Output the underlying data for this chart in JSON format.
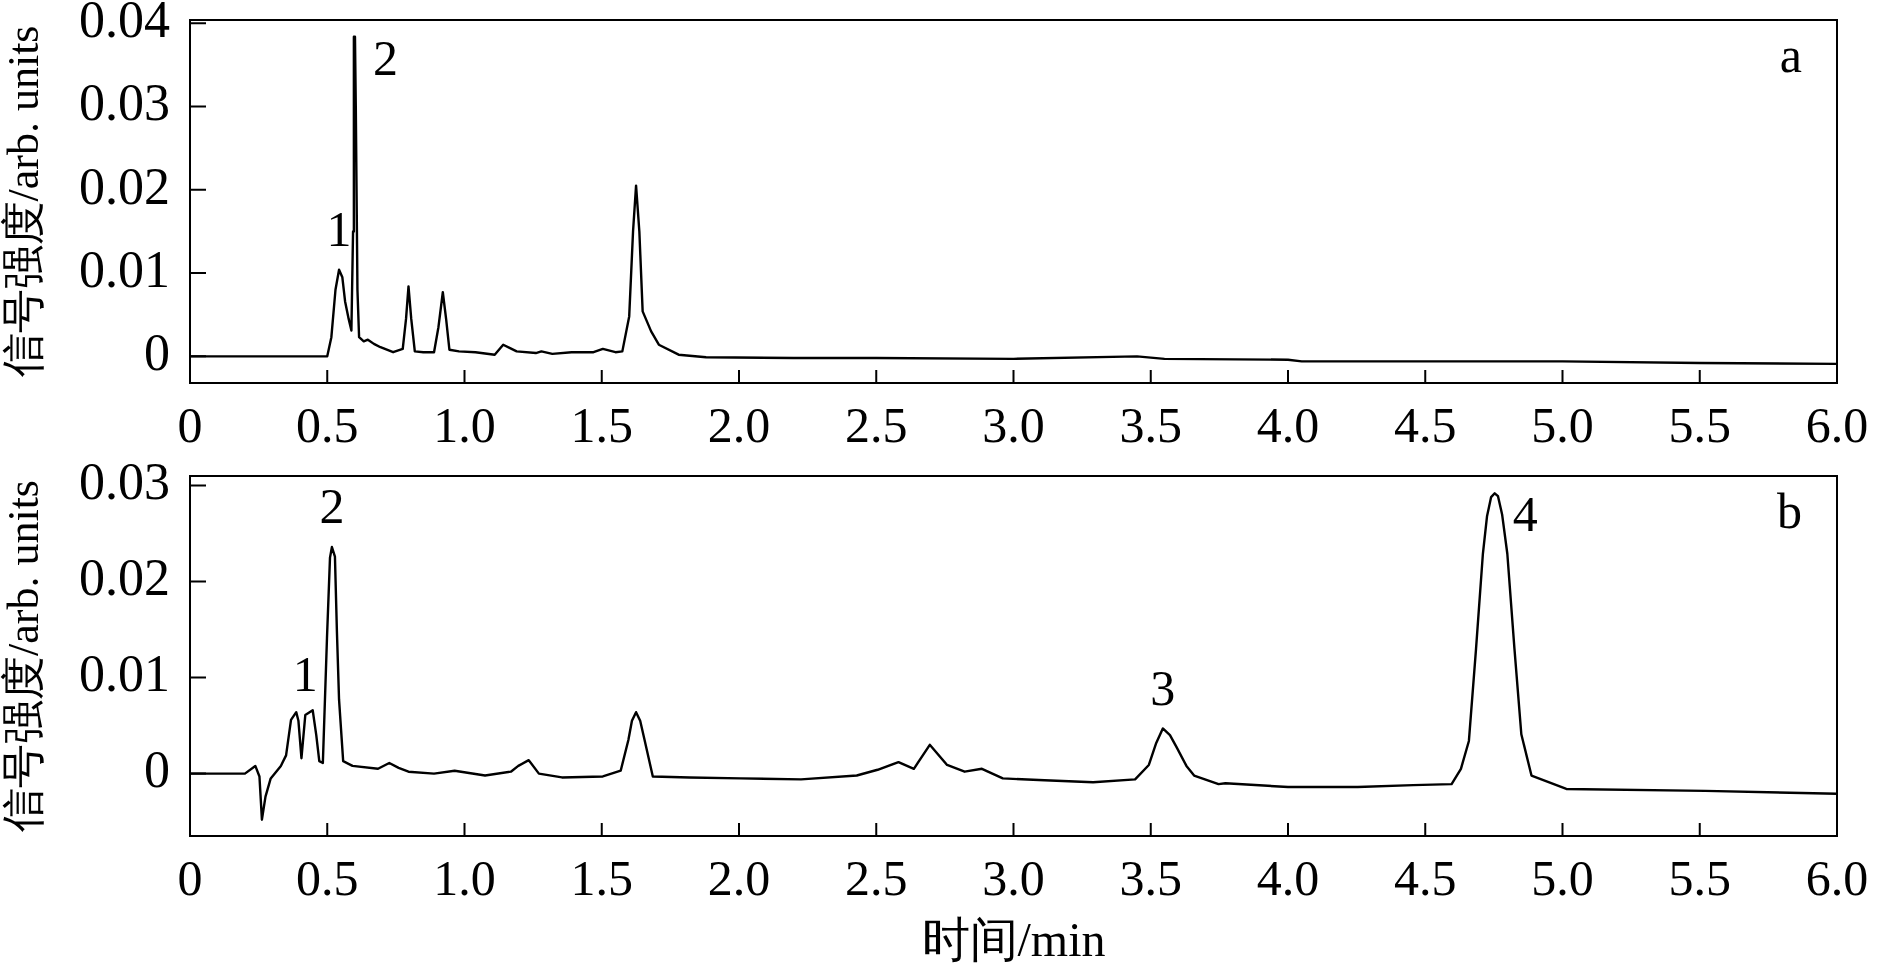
{
  "chart_data": [
    {
      "type": "line",
      "ylabel": "信号强度/arb. units",
      "x": [
        0,
        0.2,
        0.4,
        0.5,
        0.515,
        0.53,
        0.543,
        0.555,
        0.565,
        0.578,
        0.588,
        0.594,
        0.597,
        0.601,
        0.604,
        0.61,
        0.616,
        0.633,
        0.648,
        0.67,
        0.694,
        0.74,
        0.775,
        0.787,
        0.796,
        0.806,
        0.819,
        0.85,
        0.889,
        0.905,
        0.921,
        0.933,
        0.945,
        0.98,
        1.04,
        1.11,
        1.141,
        1.19,
        1.26,
        1.28,
        1.32,
        1.39,
        1.47,
        1.504,
        1.55,
        1.575,
        1.6,
        1.614,
        1.625,
        1.637,
        1.649,
        1.68,
        1.708,
        1.78,
        1.88,
        2.2,
        2.5,
        3.0,
        3.45,
        3.55,
        4.0,
        4.05,
        5.0,
        5.5,
        6.0
      ],
      "series": [
        {
          "color": "#000000",
          "values": [
            0,
            0,
            0,
            0,
            0.0023,
            0.008,
            0.0104,
            0.0095,
            0.0066,
            0.0045,
            0.0031,
            0.015,
            0.0384,
            0.0384,
            0.03,
            0.008,
            0.0023,
            0.0018,
            0.002,
            0.0015,
            0.0011,
            0.0005,
            0.0009,
            0.0045,
            0.0084,
            0.0045,
            0.0006,
            0.0005,
            0.0005,
            0.0035,
            0.0077,
            0.0045,
            0.0008,
            0.0006,
            0.0005,
            0.0002,
            0.0014,
            0.0006,
            0.0004,
            0.0006,
            0.0003,
            0.0005,
            0.0005,
            0.0009,
            0.0005,
            0.0006,
            0.0048,
            0.015,
            0.0205,
            0.015,
            0.0054,
            0.003,
            0.0014,
            0.0002,
            -0.0001,
            -0.0002,
            -0.0002,
            -0.0003,
            0,
            -0.0003,
            -0.0004,
            -0.0006,
            -0.0006,
            -0.0008,
            -0.0009
          ]
        }
      ],
      "xlim": [
        0,
        6
      ],
      "xticks": [
        0,
        0.5,
        {
          "value": 1,
          "label": "1.0"
        },
        1.5,
        {
          "value": 2,
          "label": "2.0"
        },
        2.5,
        {
          "value": 3,
          "label": "3.0"
        },
        3.5,
        {
          "value": 4,
          "label": "4.0"
        },
        4.5,
        {
          "value": 5,
          "label": "5.0"
        },
        5.5,
        {
          "value": 6,
          "label": "6.0"
        }
      ],
      "ylim": [
        -0.0032,
        0.0404
      ],
      "yticks": [
        0,
        0.01,
        0.02,
        0.03,
        0.04
      ],
      "annotations": [
        "a",
        {
          "text": "1",
          "x": 0.543,
          "y": 0.0104
        },
        {
          "text": "2",
          "x": 0.601,
          "y": 0.0384
        }
      ]
    },
    {
      "type": "line",
      "xlabel": "时间/min",
      "ylabel": "信号强度/arb. units",
      "x": [
        0,
        0.2,
        0.238,
        0.253,
        0.262,
        0.275,
        0.294,
        0.331,
        0.35,
        0.368,
        0.387,
        0.395,
        0.406,
        0.42,
        0.447,
        0.46,
        0.471,
        0.484,
        0.499,
        0.51,
        0.517,
        0.528,
        0.535,
        0.543,
        0.558,
        0.592,
        0.685,
        0.726,
        0.76,
        0.796,
        0.889,
        0.964,
        1.075,
        1.169,
        1.196,
        1.234,
        1.271,
        1.355,
        1.504,
        1.569,
        1.597,
        1.61,
        1.625,
        1.64,
        1.656,
        1.686,
        1.82,
        2.006,
        2.226,
        2.429,
        2.505,
        2.581,
        2.637,
        2.695,
        2.758,
        2.822,
        2.885,
        2.961,
        3.113,
        3.29,
        3.443,
        3.493,
        3.52,
        3.544,
        3.57,
        3.595,
        3.63,
        3.658,
        3.747,
        3.772,
        4.0,
        4.254,
        4.456,
        4.596,
        4.63,
        4.659,
        4.685,
        4.71,
        4.725,
        4.74,
        4.753,
        4.765,
        4.78,
        4.799,
        4.825,
        4.85,
        4.887,
        5.014,
        5.52,
        6.0
      ],
      "series": [
        {
          "color": "#000000",
          "values": [
            0,
            0,
            0.0008,
            -0.0003,
            -0.0048,
            -0.0024,
            -0.0005,
            0.0008,
            0.0019,
            0.0056,
            0.0064,
            0.0055,
            0.0016,
            0.0061,
            0.0066,
            0.004,
            0.0013,
            0.0011,
            0.0141,
            0.0225,
            0.0236,
            0.0226,
            0.015,
            0.0077,
            0.0013,
            0.0008,
            0.0005,
            0.0011,
            0.0006,
            0.0002,
            0,
            0.0003,
            -0.0002,
            0.0002,
            0.0008,
            0.0014,
            0,
            -0.0004,
            -0.0003,
            0.0003,
            0.0035,
            0.0055,
            0.0064,
            0.0055,
            0.0035,
            -0.0003,
            -0.0004,
            -0.0005,
            -0.0006,
            -0.0002,
            0.0004,
            0.0012,
            0.0005,
            0.003,
            0.0009,
            0.0002,
            0.0005,
            -0.0005,
            -0.0007,
            -0.0009,
            -0.0006,
            0.0009,
            0.0032,
            0.0047,
            0.004,
            0.0027,
            0.0008,
            -0.0002,
            -0.0011,
            -0.001,
            -0.0014,
            -0.0014,
            -0.0012,
            -0.0011,
            0.0005,
            0.0034,
            0.013,
            0.0229,
            0.0268,
            0.0288,
            0.0292,
            0.0289,
            0.027,
            0.0229,
            0.013,
            0.0041,
            -0.0002,
            -0.0016,
            -0.0018,
            -0.0021
          ]
        }
      ],
      "xlim": [
        0,
        6
      ],
      "xticks": [
        0,
        0.5,
        {
          "value": 1,
          "label": "1.0"
        },
        1.5,
        {
          "value": 2,
          "label": "2.0"
        },
        2.5,
        {
          "value": 3,
          "label": "3.0"
        },
        3.5,
        {
          "value": 4,
          "label": "4.0"
        },
        4.5,
        {
          "value": 5,
          "label": "5.0"
        },
        5.5,
        {
          "value": 6,
          "label": "6.0"
        }
      ],
      "ylim": [
        -0.0065,
        0.031
      ],
      "yticks": [
        0,
        0.01,
        0.02,
        0.03
      ],
      "annotations": [
        "b",
        {
          "text": "1",
          "x": 0.42,
          "y": 0.0061
        },
        {
          "text": "2",
          "x": 0.517,
          "y": 0.0236
        },
        {
          "text": "3",
          "x": 3.544,
          "y": 0.0047
        },
        {
          "text": "4",
          "x": 4.753,
          "y": 0.0292
        }
      ]
    }
  ]
}
